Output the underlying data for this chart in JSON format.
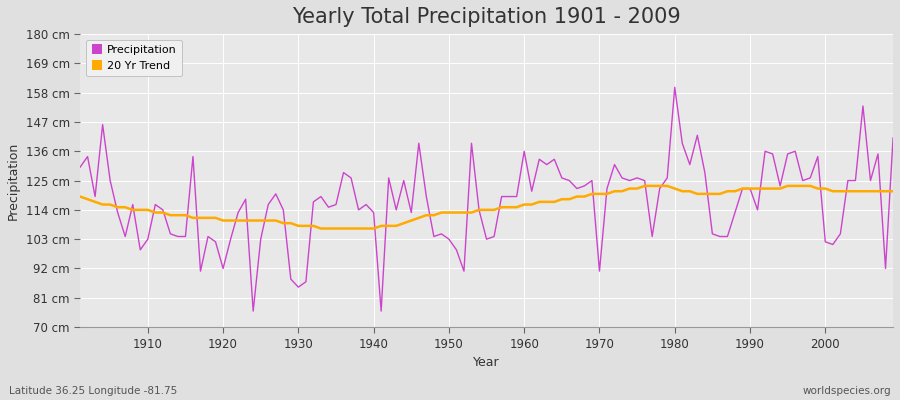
{
  "title": "Yearly Total Precipitation 1901 - 2009",
  "xlabel": "Year",
  "ylabel": "Precipitation",
  "subtitle": "Latitude 36.25 Longitude -81.75",
  "watermark": "worldspecies.org",
  "title_fontsize": 15,
  "label_fontsize": 9,
  "tick_fontsize": 8.5,
  "ylim": [
    70,
    180
  ],
  "yticks": [
    70,
    81,
    92,
    103,
    114,
    125,
    136,
    147,
    158,
    169,
    180
  ],
  "ytick_labels": [
    "70 cm",
    "81 cm",
    "92 cm",
    "103 cm",
    "114 cm",
    "125 cm",
    "136 cm",
    "147 cm",
    "158 cm",
    "169 cm",
    "180 cm"
  ],
  "xlim": [
    1901,
    2009
  ],
  "xticks": [
    1910,
    1920,
    1930,
    1940,
    1950,
    1960,
    1970,
    1980,
    1990,
    2000
  ],
  "years": [
    1901,
    1902,
    1903,
    1904,
    1905,
    1906,
    1907,
    1908,
    1909,
    1910,
    1911,
    1912,
    1913,
    1914,
    1915,
    1916,
    1917,
    1918,
    1919,
    1920,
    1921,
    1922,
    1923,
    1924,
    1925,
    1926,
    1927,
    1928,
    1929,
    1930,
    1931,
    1932,
    1933,
    1934,
    1935,
    1936,
    1937,
    1938,
    1939,
    1940,
    1941,
    1942,
    1943,
    1944,
    1945,
    1946,
    1947,
    1948,
    1949,
    1950,
    1951,
    1952,
    1953,
    1954,
    1955,
    1956,
    1957,
    1958,
    1959,
    1960,
    1961,
    1962,
    1963,
    1964,
    1965,
    1966,
    1967,
    1968,
    1969,
    1970,
    1971,
    1972,
    1973,
    1974,
    1975,
    1976,
    1977,
    1978,
    1979,
    1980,
    1981,
    1982,
    1983,
    1984,
    1985,
    1986,
    1987,
    1988,
    1989,
    1990,
    1991,
    1992,
    1993,
    1994,
    1995,
    1996,
    1997,
    1998,
    1999,
    2000,
    2001,
    2002,
    2003,
    2004,
    2005,
    2006,
    2007,
    2008,
    2009
  ],
  "precip": [
    130,
    134,
    119,
    146,
    125,
    113,
    104,
    116,
    99,
    103,
    116,
    114,
    105,
    104,
    104,
    134,
    91,
    104,
    102,
    92,
    103,
    113,
    118,
    76,
    103,
    116,
    120,
    114,
    88,
    85,
    87,
    117,
    119,
    115,
    116,
    128,
    126,
    114,
    116,
    113,
    76,
    126,
    114,
    125,
    113,
    139,
    119,
    104,
    105,
    103,
    99,
    91,
    139,
    114,
    103,
    104,
    119,
    119,
    119,
    136,
    121,
    133,
    131,
    133,
    126,
    125,
    122,
    123,
    125,
    91,
    122,
    131,
    126,
    125,
    126,
    125,
    104,
    122,
    126,
    160,
    139,
    131,
    142,
    128,
    105,
    104,
    104,
    113,
    122,
    122,
    114,
    136,
    135,
    123,
    135,
    136,
    125,
    126,
    134,
    102,
    101,
    105,
    125,
    125,
    153,
    125,
    135,
    92,
    141
  ],
  "trend": [
    119,
    118,
    117,
    116,
    116,
    115,
    115,
    114,
    114,
    114,
    113,
    113,
    112,
    112,
    112,
    111,
    111,
    111,
    111,
    110,
    110,
    110,
    110,
    110,
    110,
    110,
    110,
    109,
    109,
    108,
    108,
    108,
    107,
    107,
    107,
    107,
    107,
    107,
    107,
    107,
    108,
    108,
    108,
    109,
    110,
    111,
    112,
    112,
    113,
    113,
    113,
    113,
    113,
    114,
    114,
    114,
    115,
    115,
    115,
    116,
    116,
    117,
    117,
    117,
    118,
    118,
    119,
    119,
    120,
    120,
    120,
    121,
    121,
    122,
    122,
    123,
    123,
    123,
    123,
    122,
    121,
    121,
    120,
    120,
    120,
    120,
    121,
    121,
    122,
    122,
    122,
    122,
    122,
    122,
    123,
    123,
    123,
    123,
    122,
    122,
    121,
    121,
    121,
    121,
    121,
    121,
    121,
    121,
    121
  ],
  "precip_color": "#cc44cc",
  "trend_color": "#ffaa00",
  "bg_color": "#e0e0e0",
  "plot_bg_color": "#e8e8e8",
  "grid_color": "#ffffff",
  "legend_bg": "#f0f0f0",
  "tick_color": "#666666",
  "text_color": "#333333"
}
